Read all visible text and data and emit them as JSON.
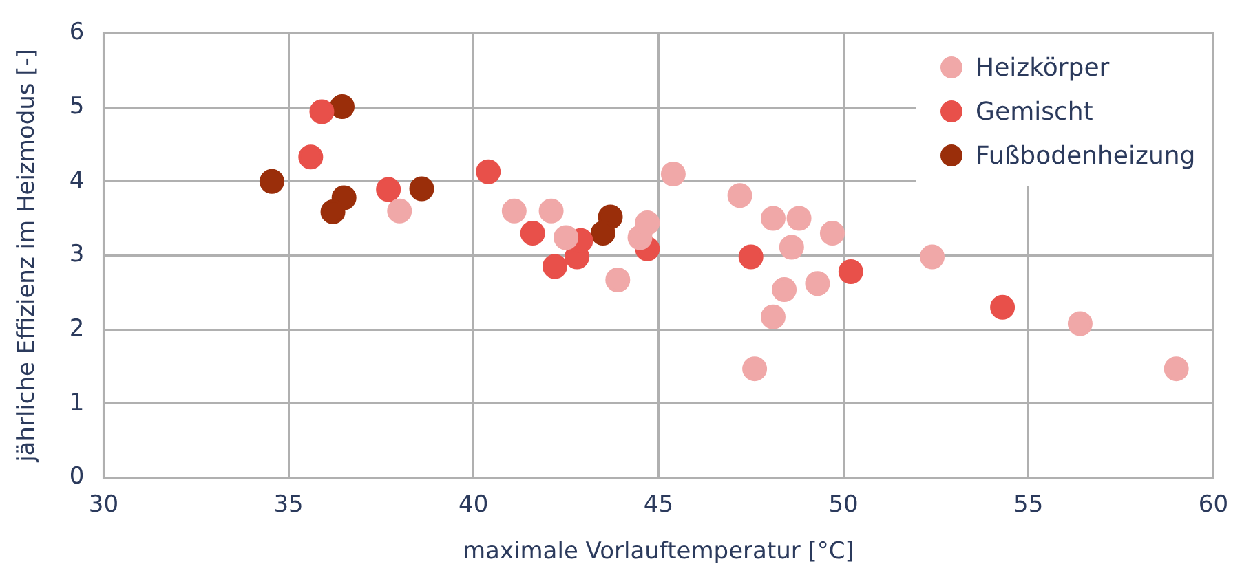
{
  "chart_data": {
    "type": "scatter",
    "xlabel": "maximale Vorlauftemperatur [°C]",
    "ylabel": "jährliche Effizienz im Heizmodus [-]",
    "series": [
      {
        "name": "Heizkörper",
        "color": "#f0a8a8",
        "x": [
          38.0,
          41.1,
          42.1,
          42.5,
          43.9,
          44.5,
          44.7,
          45.4,
          47.2,
          48.1,
          48.8,
          48.6,
          49.7,
          48.4,
          49.3,
          48.1,
          47.6,
          52.4,
          56.4,
          59.0
        ],
        "values": [
          3.6,
          3.6,
          3.6,
          3.24,
          2.67,
          3.24,
          3.44,
          4.1,
          3.81,
          3.5,
          3.5,
          3.11,
          3.3,
          2.54,
          2.62,
          2.17,
          1.47,
          2.98,
          2.08,
          1.47
        ]
      },
      {
        "name": "Gemischt",
        "color": "#e8504a",
        "x": [
          35.9,
          35.6,
          37.7,
          40.4,
          41.6,
          42.2,
          42.8,
          42.9,
          44.7,
          47.5,
          50.2,
          54.3
        ],
        "values": [
          4.94,
          4.33,
          3.89,
          4.13,
          3.3,
          2.85,
          2.98,
          3.2,
          3.09,
          2.98,
          2.78,
          2.3
        ]
      },
      {
        "name": "Fußbodenheizung",
        "color": "#9a2e0a",
        "x": [
          34.55,
          36.45,
          36.5,
          36.2,
          38.6,
          43.7,
          43.5
        ],
        "values": [
          4.0,
          5.01,
          3.78,
          3.59,
          3.9,
          3.52,
          3.3
        ]
      }
    ],
    "xlim": [
      30,
      60
    ],
    "xticks": [
      30,
      35,
      40,
      45,
      50,
      55,
      60
    ],
    "ylim": [
      0,
      6
    ],
    "yticks": [
      0,
      1,
      2,
      3,
      4,
      5,
      6
    ],
    "grid": true,
    "legend": "top right",
    "marker": "circle"
  }
}
